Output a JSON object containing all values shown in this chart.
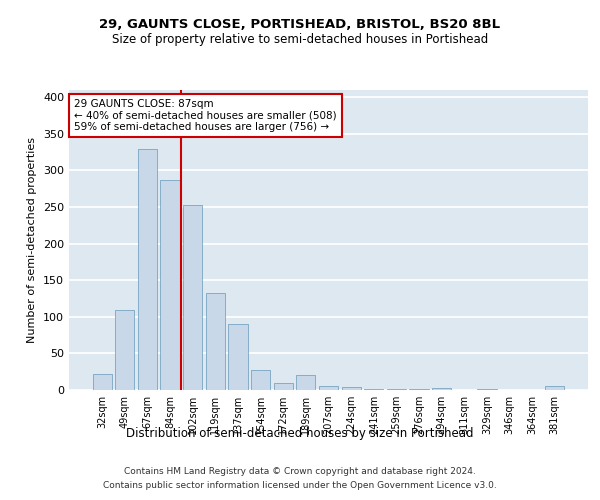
{
  "title": "29, GAUNTS CLOSE, PORTISHEAD, BRISTOL, BS20 8BL",
  "subtitle": "Size of property relative to semi-detached houses in Portishead",
  "xlabel": "Distribution of semi-detached houses by size in Portishead",
  "ylabel": "Number of semi-detached properties",
  "categories": [
    "32sqm",
    "49sqm",
    "67sqm",
    "84sqm",
    "102sqm",
    "119sqm",
    "137sqm",
    "154sqm",
    "172sqm",
    "189sqm",
    "207sqm",
    "224sqm",
    "241sqm",
    "259sqm",
    "276sqm",
    "294sqm",
    "311sqm",
    "329sqm",
    "346sqm",
    "364sqm",
    "381sqm"
  ],
  "values": [
    22,
    110,
    330,
    287,
    253,
    132,
    90,
    27,
    10,
    20,
    6,
    4,
    2,
    2,
    2,
    3,
    0,
    2,
    0,
    0,
    5
  ],
  "bar_color": "#c8d8e8",
  "bar_edge_color": "#6699bb",
  "vline_x": 3.5,
  "vline_color": "#cc0000",
  "annotation_line1": "29 GAUNTS CLOSE: 87sqm",
  "annotation_line2": "← 40% of semi-detached houses are smaller (508)",
  "annotation_line3": "59% of semi-detached houses are larger (756) →",
  "annotation_box_color": "#ffffff",
  "annotation_box_edge": "#cc0000",
  "ylim": [
    0,
    410
  ],
  "yticks": [
    0,
    50,
    100,
    150,
    200,
    250,
    300,
    350,
    400
  ],
  "background_color": "#dde8f0",
  "grid_color": "#ffffff",
  "footer_line1": "Contains HM Land Registry data © Crown copyright and database right 2024.",
  "footer_line2": "Contains public sector information licensed under the Open Government Licence v3.0."
}
